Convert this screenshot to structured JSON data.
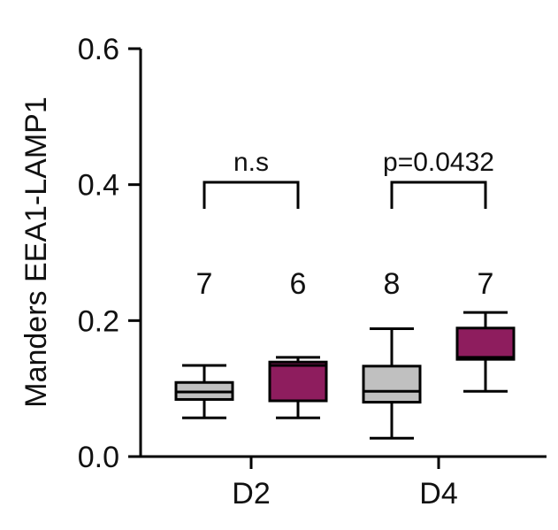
{
  "chart_data": {
    "type": "box",
    "ylabel": "Manders EEA1-LAMP1",
    "ylim": [
      0,
      0.6
    ],
    "yticks": [
      0.0,
      0.2,
      0.4,
      0.6
    ],
    "ytick_labels": [
      "0.0",
      "0.2",
      "0.4",
      "0.6"
    ],
    "categories": [
      "D2",
      "D4"
    ],
    "colors": {
      "gray": "#c0c0c0",
      "magenta": "#8e1d5e"
    },
    "boxes": [
      {
        "group": "D2",
        "color": "gray",
        "min": 0.057,
        "q1": 0.084,
        "median": 0.095,
        "q3": 0.109,
        "max": 0.134,
        "n": "7"
      },
      {
        "group": "D2",
        "color": "magenta",
        "min": 0.057,
        "q1": 0.082,
        "median": 0.134,
        "q3": 0.139,
        "max": 0.146,
        "n": "6"
      },
      {
        "group": "D4",
        "color": "gray",
        "min": 0.027,
        "q1": 0.08,
        "median": 0.096,
        "q3": 0.133,
        "max": 0.188,
        "n": "8"
      },
      {
        "group": "D4",
        "color": "magenta",
        "min": 0.096,
        "q1": 0.143,
        "median": 0.146,
        "q3": 0.189,
        "max": 0.212,
        "n": "7"
      }
    ],
    "comparisons": [
      {
        "group": "D2",
        "label": "n.s"
      },
      {
        "group": "D4",
        "label": "p=0.0432"
      }
    ]
  }
}
